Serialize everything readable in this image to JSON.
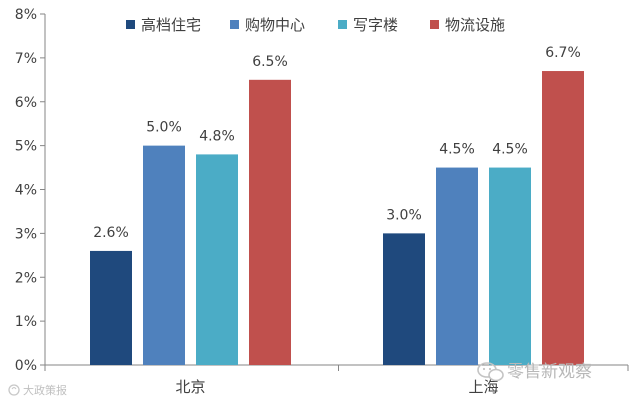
{
  "chart_data": {
    "type": "bar",
    "categories": [
      "北京",
      "上海"
    ],
    "series": [
      {
        "name": "高档住宅",
        "color": "#1f497d",
        "values": [
          2.6,
          3.0
        ],
        "labels": [
          "2.6%",
          "3.0%"
        ]
      },
      {
        "name": "购物中心",
        "color": "#4f81bd",
        "values": [
          5.0,
          4.5
        ],
        "labels": [
          "5.0%",
          "4.5%"
        ]
      },
      {
        "name": "写字楼",
        "color": "#4bacc6",
        "values": [
          4.8,
          4.5
        ],
        "labels": [
          "4.8%",
          "4.5%"
        ]
      },
      {
        "name": "物流设施",
        "color": "#c0504d",
        "values": [
          6.5,
          6.7
        ],
        "labels": [
          "6.5%",
          "6.7%"
        ]
      }
    ],
    "y_ticks": [
      {
        "value": 0,
        "label": "0%"
      },
      {
        "value": 1,
        "label": "1%"
      },
      {
        "value": 2,
        "label": "2%"
      },
      {
        "value": 3,
        "label": "3%"
      },
      {
        "value": 4,
        "label": "4%"
      },
      {
        "value": 5,
        "label": "5%"
      },
      {
        "value": 6,
        "label": "6%"
      },
      {
        "value": 7,
        "label": "7%"
      },
      {
        "value": 8,
        "label": "8%"
      }
    ],
    "ylim": [
      0,
      8
    ],
    "title": "",
    "xlabel": "",
    "ylabel": "",
    "grid": false,
    "legend_position": "top"
  },
  "watermarks": {
    "brand": "零售新观察",
    "corner": "大政策报"
  }
}
